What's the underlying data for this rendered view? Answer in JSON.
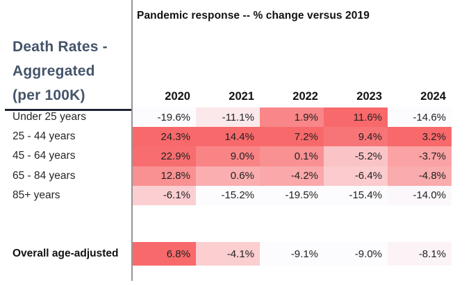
{
  "left_panel": {
    "title_lines": [
      "Death Rates -",
      "Aggregated",
      "(per 100K)"
    ]
  },
  "heatmap": {
    "title": "Pandemic response -- % change versus 2019",
    "columns": [
      "2020",
      "2021",
      "2022",
      "2023",
      "2024"
    ],
    "rows": [
      {
        "label": "Under 25 years",
        "cells": [
          [
            "-19.6%",
            "#FCFCFF"
          ],
          [
            "-11.1%",
            "#FBE8EA"
          ],
          [
            "1.9%",
            "#F98688"
          ],
          [
            "11.6%",
            "#F8696B"
          ],
          [
            "-14.6%",
            "#FCFCFF"
          ]
        ]
      },
      {
        "label": "25 - 44 years",
        "cells": [
          [
            "24.3%",
            "#F8696B"
          ],
          [
            "14.4%",
            "#F8696B"
          ],
          [
            "7.2%",
            "#F8696B"
          ],
          [
            "9.4%",
            "#F87577"
          ],
          [
            "3.2%",
            "#F8696B"
          ]
        ]
      },
      {
        "label": "45 - 64 years",
        "cells": [
          [
            "22.9%",
            "#F86E70"
          ],
          [
            "9.0%",
            "#F98486"
          ],
          [
            "0.1%",
            "#F99092"
          ],
          [
            "-5.2%",
            "#FAC4C7"
          ],
          [
            "-3.7%",
            "#FAA2A4"
          ]
        ]
      },
      {
        "label": "65 - 84 years",
        "cells": [
          [
            "12.8%",
            "#F99092"
          ],
          [
            "0.6%",
            "#FAAEB0"
          ],
          [
            "-4.2%",
            "#FAA8AA"
          ],
          [
            "-6.4%",
            "#FBCBCE"
          ],
          [
            "-4.8%",
            "#FAABAD"
          ]
        ]
      },
      {
        "label": "85+ years",
        "cells": [
          [
            "-6.1%",
            "#FBCFD1"
          ],
          [
            "-15.2%",
            "#FCFCFF"
          ],
          [
            "-19.5%",
            "#FCFCFF"
          ],
          [
            "-15.4%",
            "#FCFCFF"
          ],
          [
            "-14.0%",
            "#FCF7FA"
          ]
        ]
      }
    ],
    "overall_row": {
      "label": "Overall age-adjusted",
      "cells": [
        [
          "6.8%",
          "#F8696B"
        ],
        [
          "-4.1%",
          "#FBCED0"
        ],
        [
          "-9.1%",
          "#FCFCFF"
        ],
        [
          "-9.0%",
          "#FCFBFE"
        ],
        [
          "-8.1%",
          "#FCF3F6"
        ]
      ]
    }
  },
  "colors": {
    "scale_min": "#FCFCFF",
    "scale_max": "#F8696B",
    "heading_text": "#44546A",
    "divider_gray": "#949494",
    "underline_dark": "#1F2430"
  },
  "chart_data": {
    "type": "heatmap",
    "title": "Pandemic response -- % change versus 2019",
    "columns": [
      "2020",
      "2021",
      "2022",
      "2023",
      "2024"
    ],
    "row_labels": [
      "Under 25 years",
      "25 - 44 years",
      "45 - 64 years",
      "65 - 84 years",
      "85+ years",
      "Overall age-adjusted"
    ],
    "values_pct": [
      [
        -19.6,
        -11.1,
        1.9,
        11.6,
        -14.6
      ],
      [
        24.3,
        14.4,
        7.2,
        9.4,
        3.2
      ],
      [
        22.9,
        9.0,
        0.1,
        -5.2,
        -3.7
      ],
      [
        12.8,
        0.6,
        -4.2,
        -6.4,
        -4.8
      ],
      [
        -6.1,
        -15.2,
        -19.5,
        -15.4,
        -14.0
      ],
      [
        6.8,
        -4.1,
        -9.1,
        -9.0,
        -8.1
      ]
    ],
    "color_scale": {
      "min_color": "#FCFCFF",
      "max_color": "#F8696B",
      "normalization": "per column; overall row scaled on its own values"
    },
    "layout": {
      "grid": false,
      "legend": false,
      "left_axis_title": "Death Rates - Aggregated (per 100K)"
    }
  }
}
